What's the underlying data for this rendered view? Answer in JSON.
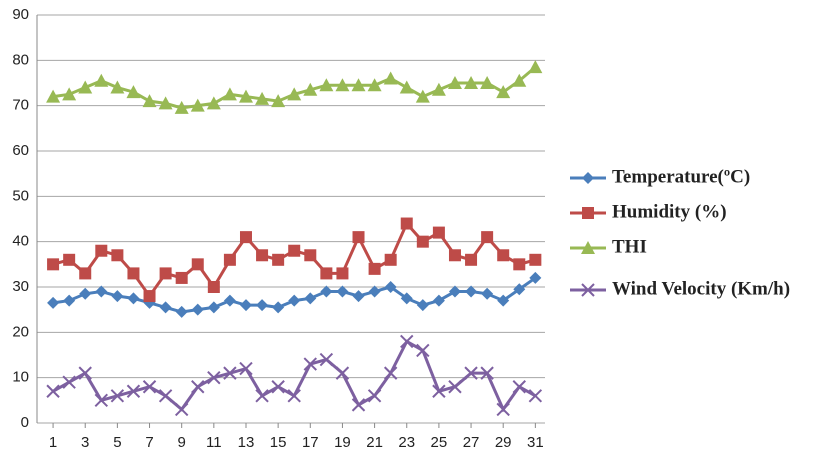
{
  "chart_data": {
    "type": "line",
    "x": [
      1,
      2,
      3,
      4,
      5,
      6,
      7,
      8,
      9,
      10,
      11,
      12,
      13,
      14,
      15,
      16,
      17,
      18,
      19,
      20,
      21,
      22,
      23,
      24,
      25,
      26,
      27,
      28,
      29,
      30,
      31
    ],
    "xlim": [
      0,
      31.6
    ],
    "xticks": [
      1,
      3,
      5,
      7,
      9,
      11,
      13,
      15,
      17,
      19,
      21,
      23,
      25,
      27,
      29,
      31
    ],
    "ylim": [
      0,
      90
    ],
    "yticks": [
      0,
      10,
      20,
      30,
      40,
      50,
      60,
      70,
      80,
      90
    ],
    "grid": true,
    "series": [
      {
        "name": "Temperature(ºC)",
        "color": "#4a7ebb",
        "marker": "diamond",
        "values": [
          26.5,
          27,
          28.5,
          29,
          28,
          27.5,
          26.5,
          25.5,
          24.5,
          25,
          25.5,
          27,
          26,
          26,
          25.5,
          27,
          27.5,
          29,
          29,
          28,
          29,
          30,
          27.5,
          26,
          27,
          29,
          29,
          28.5,
          27,
          29.5,
          32
        ]
      },
      {
        "name": "Humidity (%)",
        "color": "#be4b48",
        "marker": "square",
        "values": [
          35,
          36,
          33,
          38,
          37,
          33,
          28,
          33,
          32,
          35,
          30,
          36,
          41,
          37,
          36,
          38,
          37,
          33,
          33,
          41,
          34,
          36,
          44,
          40,
          42,
          37,
          36,
          41,
          37,
          35,
          36
        ]
      },
      {
        "name": "THI",
        "color": "#98b954",
        "marker": "triangle",
        "values": [
          72,
          72.5,
          74,
          75.5,
          74,
          73,
          71,
          70.5,
          69.5,
          70,
          70.5,
          72.5,
          72,
          71.5,
          71,
          72.5,
          73.5,
          74.5,
          74.5,
          74.5,
          74.5,
          76,
          74,
          72,
          73.5,
          75,
          75,
          75,
          73,
          75.5,
          78.5
        ]
      },
      {
        "name": "Wind Velocity (Km/h)",
        "color": "#7d60a0",
        "marker": "x",
        "values": [
          7,
          9,
          11,
          5,
          6,
          7,
          8,
          6,
          3,
          8,
          10,
          11,
          12,
          6,
          8,
          6,
          13,
          14,
          11,
          4,
          6,
          11,
          18,
          16,
          7,
          8,
          11,
          11,
          3,
          8,
          6
        ]
      }
    ]
  }
}
